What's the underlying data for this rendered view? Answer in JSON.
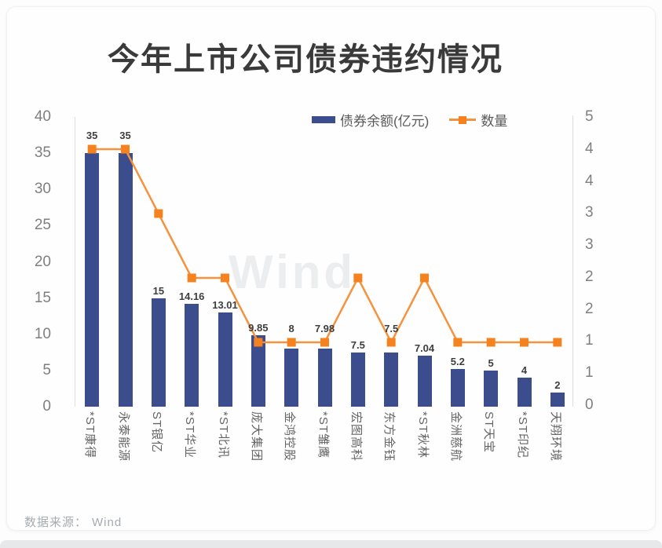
{
  "chart_data": {
    "type": "bar+line",
    "title": "今年上市公司债券违约情况",
    "watermark": "Wind",
    "categories": [
      "*ST康得",
      "永泰能源",
      "ST银亿",
      "*ST华业",
      "*ST北讯",
      "庞大集团",
      "金鸿控股",
      "*ST雏鹰",
      "宏图高科",
      "东方金钰",
      "*ST秋林",
      "金洲慈航",
      "ST天宝",
      "*ST印纪",
      "天翔环境"
    ],
    "series": [
      {
        "name": "债券余额(亿元)",
        "type": "bar",
        "axis": "left",
        "values": [
          35,
          35,
          15,
          14.16,
          13.01,
          9.85,
          8,
          7.98,
          7.5,
          7.5,
          7.04,
          5.2,
          5,
          4,
          2
        ],
        "labels": [
          "35",
          "35",
          "15",
          "14.16",
          "13.01",
          "9.85",
          "8",
          "7.98",
          "7.5",
          "7.5",
          "7.04",
          "5.2",
          "5",
          "4",
          "2"
        ]
      },
      {
        "name": "数量",
        "type": "line",
        "axis": "right",
        "values": [
          4,
          4,
          3,
          2,
          2,
          1,
          1,
          1,
          2,
          1,
          2,
          1,
          1,
          1,
          1
        ]
      }
    ],
    "left_axis": {
      "min": 0,
      "max": 40,
      "ticks": [
        40,
        35,
        30,
        25,
        20,
        15,
        10,
        5,
        0
      ]
    },
    "right_axis": {
      "min": 0,
      "max": 4.5,
      "tick_labels_top_to_bottom": [
        "5",
        "4",
        "4",
        "3",
        "3",
        "2",
        "2",
        "1",
        "1",
        "0"
      ]
    },
    "grid": "off",
    "legend_position": "top-right-inside"
  },
  "legend": {
    "bar_label": "债券余额(亿元)",
    "line_label": "数量"
  },
  "footer": {
    "source_label": "数据来源：",
    "source_value": "Wind"
  },
  "colors": {
    "bar": "#3B4D8C",
    "line": "#F5923E",
    "marker": "#F5821F",
    "title_text": "#3a3a3a",
    "axis_text": "#7f7f7f",
    "watermark": "#ECEDEF"
  }
}
